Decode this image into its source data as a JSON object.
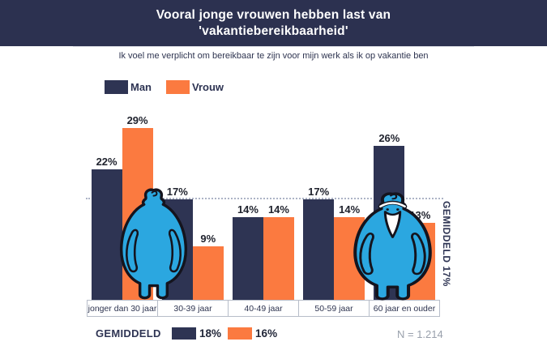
{
  "header": {
    "title_line1": "Vooral jonge vrouwen hebben last van",
    "title_line2": "'vakantiebereikbaarheid'"
  },
  "subtitle": "Ik voel me verplicht om bereikbaar te zijn voor mijn werk als ik op vakantie ben",
  "chart_data": {
    "type": "bar",
    "title": "Vooral jonge vrouwen hebben last van 'vakantiebereikbaarheid'",
    "categories": [
      "jonger dan 30 jaar",
      "30-39 jaar",
      "40-49 jaar",
      "50-59 jaar",
      "60 jaar en ouder"
    ],
    "series": [
      {
        "name": "Man",
        "color": "#2E3453",
        "values": [
          22,
          17,
          14,
          17,
          26
        ]
      },
      {
        "name": "Vrouw",
        "color": "#FB7A40",
        "values": [
          29,
          9,
          14,
          14,
          13
        ]
      }
    ],
    "unit": "%",
    "average_line": {
      "value": 17,
      "label": "GEMIDDELD 17%"
    },
    "ylim": [
      0,
      31
    ],
    "grid": false,
    "legend_position": "top-left"
  },
  "footer": {
    "average_label": "GEMIDDELD",
    "man_avg": 18,
    "vrouw_avg": 16,
    "sample": "N = 1.214"
  },
  "icons": {
    "left_mascot": "blue-person-back-view",
    "right_mascot": "blue-bearded-person-front-view"
  },
  "colors": {
    "header_bg": "#2C3150",
    "navy": "#2E3453",
    "orange": "#FB7A40",
    "mascot_blue": "#2BA7E0",
    "average_line": "#ADB4C6"
  }
}
